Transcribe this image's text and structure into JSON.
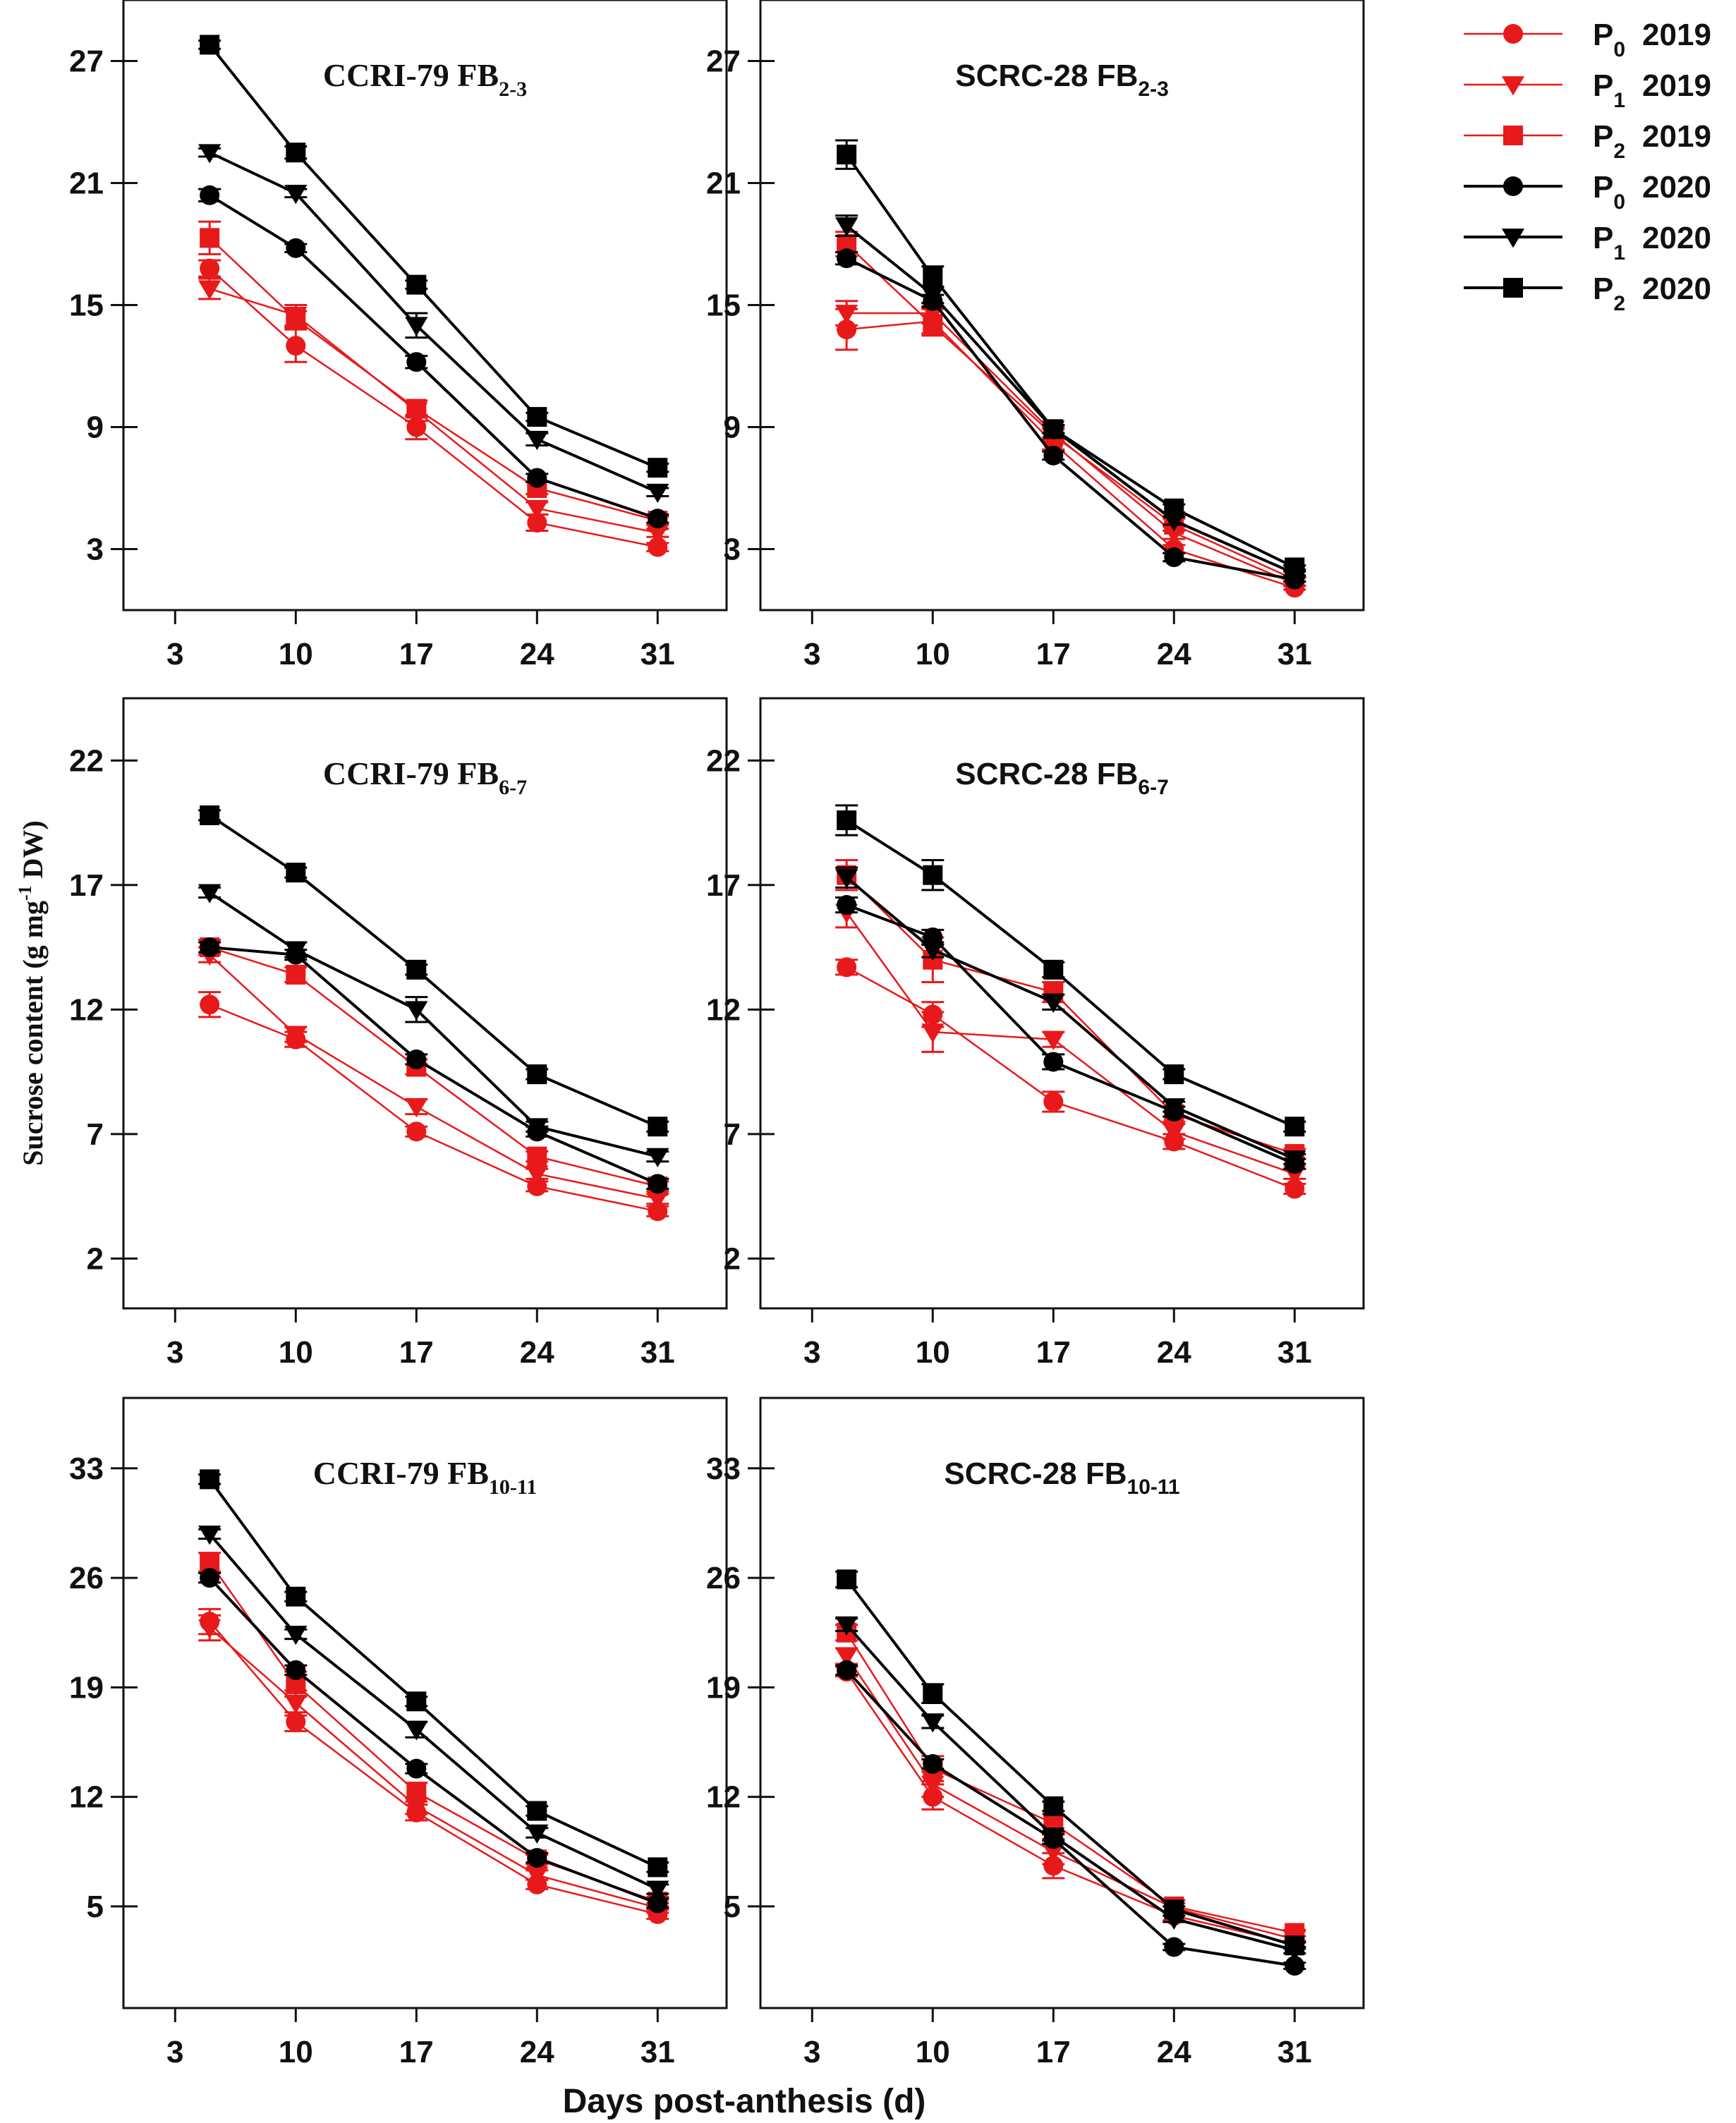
{
  "figure": {
    "xlabel": "Days post-anthesis (d)",
    "ylabel_main": "Sucrose content (g mg",
    "ylabel_sup": "-1",
    "ylabel_tail": " DW)"
  },
  "legend": [
    {
      "p": "P",
      "sub": "0",
      "year": "2019",
      "color": "#e8191b",
      "marker": "circle"
    },
    {
      "p": "P",
      "sub": "1",
      "year": "2019",
      "color": "#e8191b",
      "marker": "triangle-down"
    },
    {
      "p": "P",
      "sub": "2",
      "year": "2019",
      "color": "#e8191b",
      "marker": "square"
    },
    {
      "p": "P",
      "sub": "0",
      "year": "2020",
      "color": "#000000",
      "marker": "circle"
    },
    {
      "p": "P",
      "sub": "1",
      "year": "2020",
      "color": "#000000",
      "marker": "triangle-down"
    },
    {
      "p": "P",
      "sub": "2",
      "year": "2020",
      "color": "#000000",
      "marker": "square"
    }
  ],
  "chart_data": [
    {
      "type": "line",
      "title_main": "CCRI-79 FB",
      "title_sub": "2-3",
      "title_font": "serif",
      "x": [
        5,
        10,
        17,
        24,
        31
      ],
      "xticks": [
        3,
        10,
        17,
        24,
        31
      ],
      "xlim": [
        0,
        35
      ],
      "yticks": [
        3,
        9,
        15,
        21,
        27
      ],
      "ylim": [
        0,
        30
      ],
      "series": [
        {
          "name": "P0 2019",
          "values": [
            16.8,
            13.0,
            9.0,
            4.3,
            3.1
          ],
          "err": [
            0.4,
            0.8,
            0.6,
            0.4,
            0.2
          ]
        },
        {
          "name": "P1 2019",
          "values": [
            15.8,
            14.5,
            9.8,
            5.0,
            3.8
          ],
          "err": [
            0.5,
            0.5,
            0.5,
            0.3,
            0.2
          ]
        },
        {
          "name": "P2 2019",
          "values": [
            18.3,
            14.3,
            9.9,
            6.0,
            4.4
          ],
          "err": [
            0.8,
            0.4,
            0.4,
            0.3,
            0.2
          ]
        },
        {
          "name": "P0 2020",
          "values": [
            20.4,
            17.8,
            12.2,
            6.5,
            4.5
          ],
          "err": [
            0.3,
            0.2,
            0.3,
            0.2,
            0.2
          ]
        },
        {
          "name": "P1 2020",
          "values": [
            22.5,
            20.5,
            14.0,
            8.4,
            5.8
          ],
          "err": [
            0.2,
            0.2,
            0.6,
            0.3,
            0.2
          ]
        },
        {
          "name": "P2 2020",
          "values": [
            27.8,
            22.5,
            16.0,
            9.5,
            7.0
          ],
          "err": [
            0.2,
            0.3,
            0.2,
            0.2,
            0.2
          ]
        }
      ]
    },
    {
      "type": "line",
      "title_main": "SCRC-28 FB",
      "title_sub": "2-3",
      "title_font": "sans",
      "x": [
        5,
        10,
        17,
        24,
        31
      ],
      "xticks": [
        3,
        10,
        17,
        24,
        31
      ],
      "xlim": [
        0,
        35
      ],
      "yticks": [
        3,
        9,
        15,
        21,
        27
      ],
      "ylim": [
        0,
        30
      ],
      "series": [
        {
          "name": "P0 2019",
          "values": [
            13.8,
            14.2,
            8.2,
            3.0,
            1.1
          ],
          "err": [
            1.0,
            0.6,
            0.3,
            0.2,
            0.1
          ]
        },
        {
          "name": "P1 2019",
          "values": [
            14.6,
            14.6,
            8.7,
            3.8,
            1.3
          ],
          "err": [
            0.6,
            0.5,
            0.3,
            0.3,
            0.1
          ]
        },
        {
          "name": "P2 2019",
          "values": [
            18.0,
            14.0,
            8.6,
            4.2,
            1.5
          ],
          "err": [
            0.6,
            0.5,
            0.3,
            0.3,
            0.1
          ]
        },
        {
          "name": "P0 2020",
          "values": [
            17.3,
            15.2,
            7.6,
            2.6,
            1.5
          ],
          "err": [
            0.3,
            0.3,
            0.2,
            0.2,
            0.1
          ]
        },
        {
          "name": "P1 2020",
          "values": [
            18.9,
            15.5,
            8.9,
            4.4,
            1.8
          ],
          "err": [
            0.5,
            0.4,
            0.2,
            0.2,
            0.1
          ]
        },
        {
          "name": "P2 2020",
          "values": [
            22.4,
            16.4,
            8.9,
            5.0,
            2.1
          ],
          "err": [
            0.7,
            0.5,
            0.2,
            0.2,
            0.1
          ]
        }
      ]
    },
    {
      "type": "line",
      "title_main": "CCRI-79 FB",
      "title_sub": "6-7",
      "title_font": "serif",
      "x": [
        5,
        10,
        17,
        24,
        31
      ],
      "xticks": [
        3,
        10,
        17,
        24,
        31
      ],
      "xlim": [
        0,
        35
      ],
      "yticks": [
        2,
        7,
        12,
        17,
        22
      ],
      "ylim": [
        0,
        24.5
      ],
      "series": [
        {
          "name": "P0 2019",
          "values": [
            12.2,
            10.8,
            7.1,
            4.9,
            3.9
          ],
          "err": [
            0.5,
            0.3,
            0.2,
            0.2,
            0.2
          ]
        },
        {
          "name": "P1 2019",
          "values": [
            14.2,
            11.0,
            8.1,
            5.4,
            4.4
          ],
          "err": [
            0.3,
            0.3,
            0.3,
            0.2,
            0.2
          ]
        },
        {
          "name": "P2 2019",
          "values": [
            14.5,
            13.4,
            9.7,
            6.1,
            4.9
          ],
          "err": [
            0.3,
            0.3,
            0.3,
            0.2,
            0.2
          ]
        },
        {
          "name": "P0 2020",
          "values": [
            14.5,
            14.2,
            10.0,
            7.1,
            5.0
          ],
          "err": [
            0.2,
            0.2,
            0.2,
            0.2,
            0.2
          ]
        },
        {
          "name": "P1 2020",
          "values": [
            16.7,
            14.4,
            12.0,
            7.3,
            6.1
          ],
          "err": [
            0.2,
            0.3,
            0.5,
            0.2,
            0.2
          ]
        },
        {
          "name": "P2 2020",
          "values": [
            19.8,
            17.5,
            13.6,
            9.4,
            7.3
          ],
          "err": [
            0.2,
            0.2,
            0.2,
            0.2,
            0.2
          ]
        }
      ]
    },
    {
      "type": "line",
      "title_main": "SCRC-28 FB",
      "title_sub": "6-7",
      "title_font": "sans",
      "x": [
        5,
        10,
        17,
        24,
        31
      ],
      "xticks": [
        3,
        10,
        17,
        24,
        31
      ],
      "xlim": [
        0,
        35
      ],
      "yticks": [
        2,
        7,
        12,
        17,
        22
      ],
      "ylim": [
        0,
        24.5
      ],
      "series": [
        {
          "name": "P0 2019",
          "values": [
            13.7,
            11.8,
            8.3,
            6.7,
            4.8
          ],
          "err": [
            0.3,
            0.5,
            0.4,
            0.3,
            0.2
          ]
        },
        {
          "name": "P1 2019",
          "values": [
            15.9,
            11.1,
            10.8,
            7.1,
            5.4
          ],
          "err": [
            0.6,
            0.8,
            0.3,
            0.3,
            0.2
          ]
        },
        {
          "name": "P2 2019",
          "values": [
            17.4,
            14.0,
            12.7,
            7.8,
            6.2
          ],
          "err": [
            0.6,
            0.9,
            0.4,
            0.3,
            0.2
          ]
        },
        {
          "name": "P0 2020",
          "values": [
            16.2,
            14.9,
            9.9,
            7.9,
            5.8
          ],
          "err": [
            0.3,
            0.3,
            0.3,
            0.2,
            0.2
          ]
        },
        {
          "name": "P1 2020",
          "values": [
            17.3,
            14.4,
            12.3,
            8.1,
            6.0
          ],
          "err": [
            0.4,
            0.3,
            0.3,
            0.2,
            0.2
          ]
        },
        {
          "name": "P2 2020",
          "values": [
            19.6,
            17.4,
            13.6,
            9.4,
            7.3
          ],
          "err": [
            0.6,
            0.6,
            0.3,
            0.2,
            0.2
          ]
        }
      ]
    },
    {
      "type": "line",
      "title_main": "CCRI-79 FB",
      "title_sub": "10-11",
      "title_font": "serif",
      "x": [
        5,
        10,
        17,
        24,
        31
      ],
      "xticks": [
        3,
        10,
        17,
        24,
        31
      ],
      "xlim": [
        0,
        35
      ],
      "yticks": [
        5,
        12,
        19,
        26,
        33
      ],
      "ylim": [
        -1.5,
        37.5
      ],
      "series": [
        {
          "name": "P0 2019",
          "values": [
            23.2,
            16.8,
            11.0,
            6.4,
            4.5
          ],
          "err": [
            0.8,
            0.6,
            0.5,
            0.3,
            0.3
          ]
        },
        {
          "name": "P1 2019",
          "values": [
            22.8,
            18.0,
            11.4,
            7.0,
            4.9
          ],
          "err": [
            0.8,
            0.8,
            0.5,
            0.3,
            0.3
          ]
        },
        {
          "name": "P2 2019",
          "values": [
            27.0,
            19.2,
            12.3,
            8.0,
            5.3
          ],
          "err": [
            0.6,
            0.8,
            0.6,
            0.3,
            0.3
          ]
        },
        {
          "name": "P0 2020",
          "values": [
            26.0,
            20.1,
            13.8,
            8.1,
            5.2
          ],
          "err": [
            0.3,
            0.3,
            0.3,
            0.3,
            0.3
          ]
        },
        {
          "name": "P1 2020",
          "values": [
            28.8,
            22.4,
            16.3,
            9.7,
            6.1
          ],
          "err": [
            0.3,
            0.3,
            0.5,
            0.3,
            0.3
          ]
        },
        {
          "name": "P2 2020",
          "values": [
            32.3,
            24.8,
            18.1,
            11.1,
            7.5
          ],
          "err": [
            0.3,
            0.3,
            0.3,
            0.3,
            0.3
          ]
        }
      ]
    },
    {
      "type": "line",
      "title_main": "SCRC-28 FB",
      "title_sub": "10-11",
      "title_font": "sans",
      "x": [
        5,
        10,
        17,
        24,
        31
      ],
      "xticks": [
        3,
        10,
        17,
        24,
        31
      ],
      "xlim": [
        0,
        35
      ],
      "yticks": [
        5,
        12,
        19,
        26,
        33
      ],
      "ylim": [
        -1.5,
        37.5
      ],
      "series": [
        {
          "name": "P0 2019",
          "values": [
            20.0,
            12.0,
            7.6,
            4.4,
            2.6
          ],
          "err": [
            0.3,
            0.8,
            0.8,
            0.3,
            0.2
          ]
        },
        {
          "name": "P1 2019",
          "values": [
            21.0,
            12.8,
            8.5,
            4.9,
            2.9
          ],
          "err": [
            0.5,
            0.8,
            0.8,
            0.3,
            0.2
          ]
        },
        {
          "name": "P2 2019",
          "values": [
            22.5,
            13.8,
            10.3,
            5.0,
            3.3
          ],
          "err": [
            0.5,
            0.8,
            0.6,
            0.4,
            0.2
          ]
        },
        {
          "name": "P0 2020",
          "values": [
            20.1,
            14.1,
            9.3,
            2.4,
            1.2
          ],
          "err": [
            0.3,
            0.3,
            0.3,
            0.2,
            0.2
          ]
        },
        {
          "name": "P1 2020",
          "values": [
            23.0,
            16.8,
            9.5,
            4.2,
            2.2
          ],
          "err": [
            0.4,
            0.4,
            0.3,
            0.2,
            0.2
          ]
        },
        {
          "name": "P2 2020",
          "values": [
            25.9,
            18.6,
            11.4,
            4.8,
            2.5
          ],
          "err": [
            0.5,
            0.6,
            0.3,
            0.2,
            0.2
          ]
        }
      ]
    }
  ]
}
